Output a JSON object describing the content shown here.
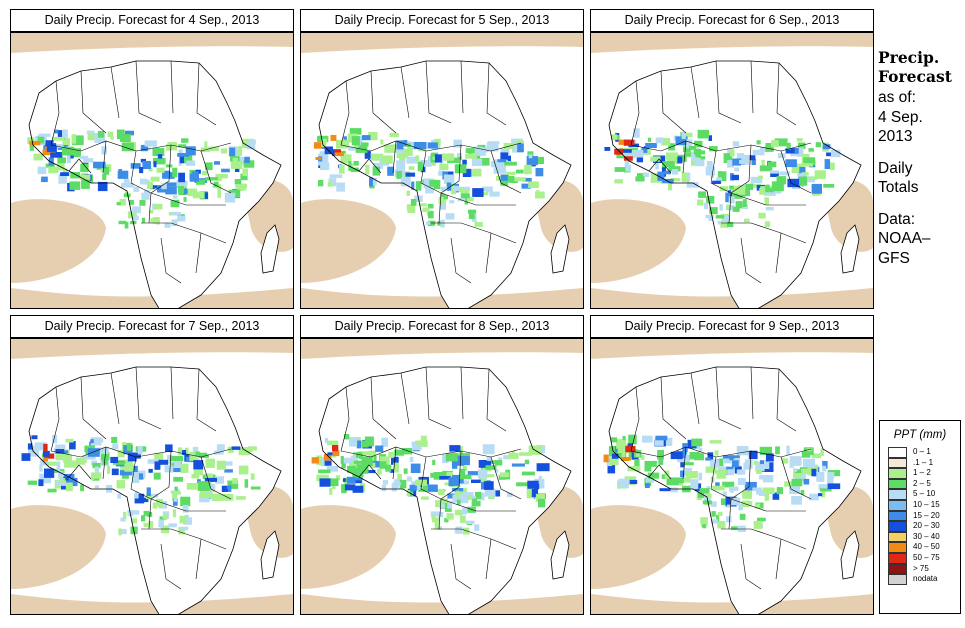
{
  "panels": [
    {
      "title": "Daily Precip. Forecast for  4 Sep., 2013"
    },
    {
      "title": "Daily Precip. Forecast for  5 Sep., 2013"
    },
    {
      "title": "Daily Precip. Forecast for  6 Sep., 2013"
    },
    {
      "title": "Daily Precip. Forecast for  7 Sep., 2013"
    },
    {
      "title": "Daily Precip. Forecast for  8 Sep., 2013"
    },
    {
      "title": "Daily Precip. Forecast for  9 Sep., 2013"
    }
  ],
  "side": {
    "head1": "Precip.",
    "head2": "Forecast",
    "asof": "as of:",
    "date1": "4 Sep.",
    "date2": "2013",
    "totals1": "Daily",
    "totals2": "Totals",
    "data1": "Data:",
    "data2": "NOAA–",
    "data3": "GFS"
  },
  "legend": {
    "title": "PPT (mm)",
    "items": [
      {
        "label": "0 – 1",
        "color": "#ffffff"
      },
      {
        "label": ".1 – 1",
        "color": "#f4ead7"
      },
      {
        "label": "1 – 2",
        "color": "#aaf08c"
      },
      {
        "label": "2 – 5",
        "color": "#5cdc64"
      },
      {
        "label": "5 – 10",
        "color": "#b8dcf4"
      },
      {
        "label": "10 – 15",
        "color": "#7cbcf0"
      },
      {
        "label": "15 – 20",
        "color": "#3c8ce8"
      },
      {
        "label": "20 – 30",
        "color": "#1450dc"
      },
      {
        "label": "30 – 40",
        "color": "#f0d264"
      },
      {
        "label": "40 – 50",
        "color": "#f08c14"
      },
      {
        "label": "50 – 75",
        "color": "#e02814"
      },
      {
        "label": "> 75",
        "color": "#8c1414"
      },
      {
        "label": "nodata",
        "color": "#d2d2d2"
      }
    ]
  },
  "colors": {
    "dry": "#e6cfb0",
    "light_green": "#aaf08c",
    "green": "#5cdc64",
    "pale_blue": "#b8dcf4",
    "blue": "#3c8ce8",
    "dark_blue": "#1450dc",
    "orange": "#f08c14",
    "red": "#e02814"
  }
}
